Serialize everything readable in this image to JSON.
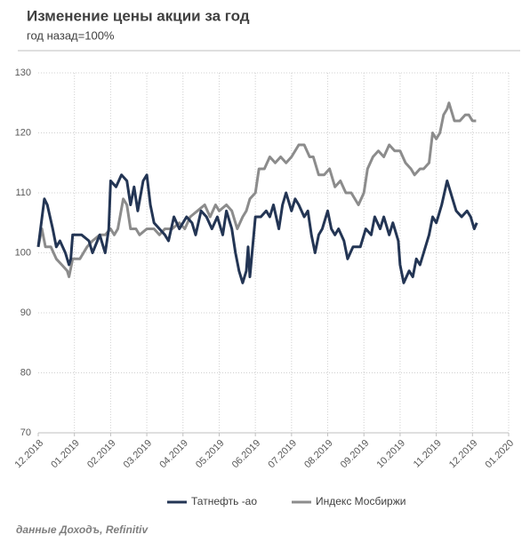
{
  "chart_data": {
    "type": "line",
    "title": "Изменение цены акции за год",
    "subtitle": "год назад=100%",
    "source": "данные Доходъ, Refinitiv",
    "xlim": [
      0,
      13
    ],
    "xticks": [
      {
        "value": 0,
        "label": "12.2018"
      },
      {
        "value": 1,
        "label": "01.2019"
      },
      {
        "value": 2,
        "label": "02.2019"
      },
      {
        "value": 3,
        "label": "03.2019"
      },
      {
        "value": 4,
        "label": "04.2019"
      },
      {
        "value": 5,
        "label": "05.2019"
      },
      {
        "value": 6,
        "label": "06.2019"
      },
      {
        "value": 7,
        "label": "07.2019"
      },
      {
        "value": 8,
        "label": "08.2019"
      },
      {
        "value": 9,
        "label": "09.2019"
      },
      {
        "value": 10,
        "label": "10.2019"
      },
      {
        "value": 11,
        "label": "11.2019"
      },
      {
        "value": 12,
        "label": "12.2019"
      },
      {
        "value": 13,
        "label": "01.2020"
      }
    ],
    "ylim": [
      70,
      130
    ],
    "yticks": [
      70,
      80,
      90,
      100,
      110,
      120,
      130
    ],
    "grid": true,
    "legend": "bottom",
    "series": [
      {
        "name": "Татнефть -ао",
        "color": "#233554",
        "x": [
          0,
          0.17,
          0.25,
          0.4,
          0.5,
          0.6,
          0.75,
          0.85,
          0.9,
          0.95,
          1.2,
          1.4,
          1.5,
          1.7,
          1.8,
          1.85,
          1.95,
          2.0,
          2.15,
          2.3,
          2.45,
          2.55,
          2.65,
          2.75,
          2.9,
          3.0,
          3.1,
          3.2,
          3.35,
          3.5,
          3.6,
          3.75,
          3.9,
          4.1,
          4.25,
          4.35,
          4.5,
          4.65,
          4.8,
          4.95,
          5.1,
          5.2,
          5.35,
          5.45,
          5.55,
          5.65,
          5.75,
          5.8,
          5.85,
          6.0,
          6.15,
          6.3,
          6.4,
          6.5,
          6.65,
          6.75,
          6.85,
          7.0,
          7.1,
          7.2,
          7.35,
          7.45,
          7.55,
          7.65,
          7.75,
          7.85,
          8.0,
          8.1,
          8.2,
          8.3,
          8.45,
          8.55,
          8.7,
          8.9,
          9.05,
          9.2,
          9.3,
          9.45,
          9.55,
          9.7,
          9.8,
          9.9,
          9.95,
          10.0,
          10.1,
          10.25,
          10.35,
          10.45,
          10.55,
          10.7,
          10.8,
          10.9,
          11.0,
          11.05,
          11.15,
          11.3,
          11.45,
          11.55,
          11.7,
          11.85,
          11.95,
          12.05,
          12.12
        ],
        "values": [
          101,
          109,
          108,
          104,
          101,
          102,
          100,
          98,
          99,
          103,
          103,
          102,
          100,
          103,
          101,
          100,
          104,
          112,
          111,
          113,
          112,
          108,
          111,
          107,
          112,
          113,
          108,
          105,
          104,
          103,
          102,
          106,
          104,
          106,
          105,
          103,
          107,
          106,
          104,
          106,
          103,
          107,
          104,
          100,
          97,
          95,
          97,
          101,
          96,
          106,
          106,
          107,
          106,
          108,
          104,
          108,
          110,
          107,
          109,
          108,
          106,
          107,
          103,
          100,
          103,
          104,
          107,
          104,
          103,
          104,
          102,
          99,
          101,
          101,
          104,
          103,
          106,
          104,
          106,
          103,
          105,
          103,
          102,
          98,
          95,
          97,
          96,
          99,
          98,
          101,
          103,
          106,
          105,
          106,
          108,
          112,
          109,
          107,
          106,
          107,
          106,
          104,
          105
        ]
      },
      {
        "name": "Индекс Мосбиржи",
        "color": "#8c8c8c",
        "x": [
          0,
          0.1,
          0.2,
          0.35,
          0.5,
          0.65,
          0.8,
          0.85,
          0.95,
          1.15,
          1.35,
          1.5,
          1.7,
          1.85,
          2.0,
          2.1,
          2.2,
          2.35,
          2.45,
          2.55,
          2.7,
          2.8,
          3.0,
          3.2,
          3.35,
          3.5,
          3.7,
          3.9,
          4.05,
          4.2,
          4.4,
          4.6,
          4.75,
          4.9,
          5.0,
          5.2,
          5.35,
          5.5,
          5.65,
          5.75,
          5.85,
          6.0,
          6.1,
          6.25,
          6.4,
          6.55,
          6.7,
          6.85,
          7.0,
          7.2,
          7.35,
          7.5,
          7.6,
          7.75,
          7.9,
          8.05,
          8.2,
          8.35,
          8.5,
          8.65,
          8.85,
          9.0,
          9.1,
          9.25,
          9.4,
          9.55,
          9.7,
          9.85,
          10.0,
          10.15,
          10.3,
          10.4,
          10.55,
          10.65,
          10.8,
          10.9,
          11.0,
          11.1,
          11.2,
          11.3,
          11.35,
          11.5,
          11.65,
          11.8,
          11.9,
          12.0,
          12.1
        ],
        "values": [
          101,
          104,
          101,
          101,
          99,
          98,
          97,
          96,
          99,
          99,
          101,
          102,
          103,
          103,
          104,
          103,
          104,
          109,
          108,
          104,
          104,
          103,
          104,
          104,
          103,
          104,
          104,
          105,
          104,
          106,
          107,
          108,
          106,
          108,
          107,
          108,
          107,
          104,
          106,
          107,
          109,
          110,
          114,
          114,
          116,
          115,
          116,
          115,
          116,
          118,
          118,
          116,
          116,
          113,
          113,
          114,
          111,
          112,
          110,
          110,
          108,
          110,
          114,
          116,
          117,
          116,
          118,
          117,
          117,
          115,
          114,
          113,
          114,
          114,
          115,
          120,
          119,
          120,
          123,
          124,
          125,
          122,
          122,
          123,
          123,
          122,
          122
        ]
      }
    ]
  }
}
